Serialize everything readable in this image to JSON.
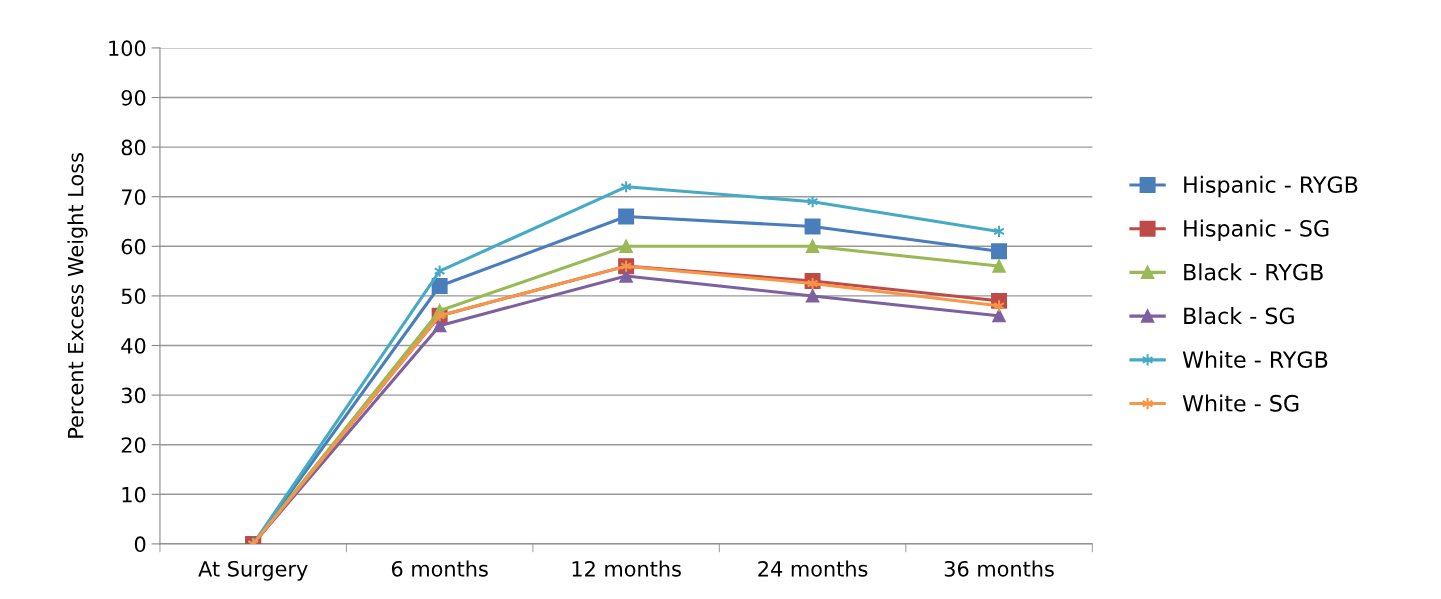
{
  "chart_data": {
    "type": "line",
    "ylabel": "Percent Excess Weight Loss",
    "categories": [
      "At Surgery",
      "6 months",
      "12 months",
      "24 months",
      "36 months"
    ],
    "series": [
      {
        "name": "Hispanic - RYGB",
        "color": "#4a7ebb",
        "marker": "square",
        "values": [
          0,
          52,
          66,
          64,
          59
        ]
      },
      {
        "name": "Hispanic - SG",
        "color": "#be4b48",
        "marker": "square",
        "values": [
          0,
          46,
          56,
          53,
          49
        ]
      },
      {
        "name": "Black - RYGB",
        "color": "#98b954",
        "marker": "triangle",
        "values": [
          0,
          47,
          60,
          60,
          56
        ]
      },
      {
        "name": "Black - SG",
        "color": "#7d60a0",
        "marker": "triangle",
        "values": [
          0,
          44,
          54,
          50,
          46
        ]
      },
      {
        "name": "White - RYGB",
        "color": "#46aac5",
        "marker": "cross",
        "values": [
          0,
          55,
          72,
          69,
          63
        ]
      },
      {
        "name": "White - SG",
        "color": "#f79646",
        "marker": "cross",
        "values": [
          0,
          46,
          56,
          52.5,
          48
        ]
      }
    ],
    "ylim": [
      0,
      100
    ],
    "yticks": [
      0,
      10,
      20,
      30,
      40,
      50,
      60,
      70,
      80,
      90,
      100
    ],
    "grid": "y",
    "legend": "right"
  }
}
